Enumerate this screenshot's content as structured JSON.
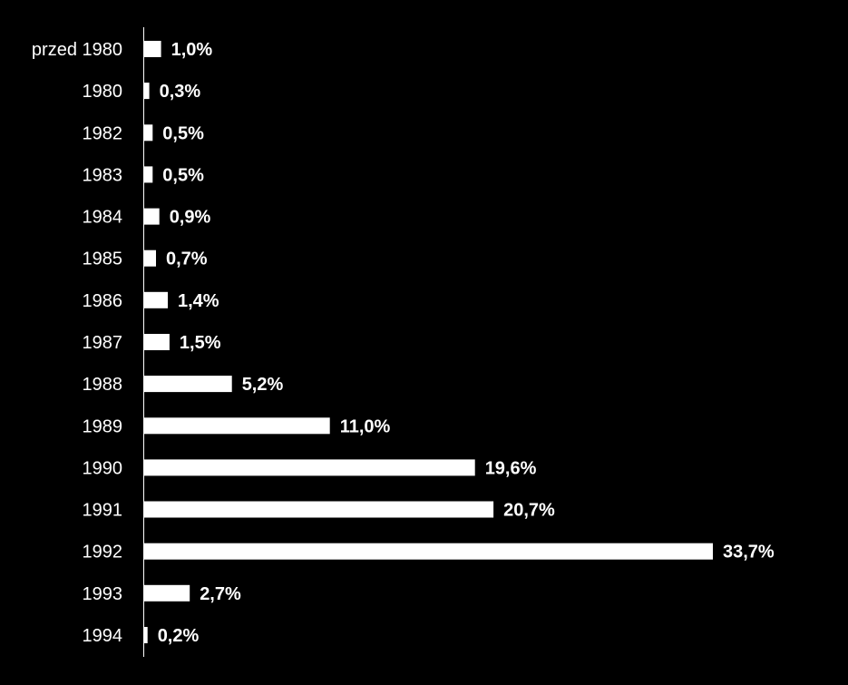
{
  "colors": {
    "background": "#000000",
    "bar": "#ffffff",
    "text": "#ffffff",
    "axis": "#ffffff"
  },
  "chart_data": {
    "type": "bar",
    "orientation": "horizontal",
    "title": "",
    "xlabel": "",
    "ylabel": "",
    "grid": false,
    "legend": "none",
    "xlim": [
      0,
      33.7
    ],
    "categories": [
      "przed 1980",
      "1980",
      "1982",
      "1983",
      "1984",
      "1985",
      "1986",
      "1987",
      "1988",
      "1989",
      "1990",
      "1991",
      "1992",
      "1993",
      "1994"
    ],
    "values": [
      1.0,
      0.3,
      0.5,
      0.5,
      0.9,
      0.7,
      1.4,
      1.5,
      5.2,
      11.0,
      19.6,
      20.7,
      33.7,
      2.7,
      0.2
    ],
    "value_labels": [
      "1,0%",
      "0,3%",
      "0,5%",
      "0,5%",
      "0,9%",
      "0,7%",
      "1,4%",
      "1,5%",
      "5,2%",
      "11,0%",
      "19,6%",
      "20,7%",
      "33,7%",
      "2,7%",
      "0,2%"
    ]
  }
}
